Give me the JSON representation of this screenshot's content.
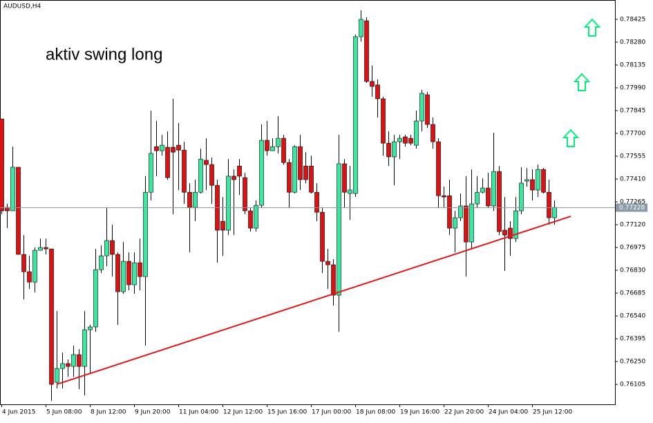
{
  "chart_data": {
    "type": "candlestick",
    "title": "AUDUSD,H4",
    "annotation": "aktiv swing long",
    "annotation_color": "#ee1111",
    "up_color": "#3be8a0",
    "down_color": "#dd1111",
    "categories": [
      "4 Jun 2015",
      null,
      null,
      null,
      null,
      null,
      null,
      null,
      "5 Jun 08:00",
      null,
      null,
      null,
      null,
      null,
      null,
      null,
      "8 Jun 12:00",
      null,
      null,
      null,
      null,
      null,
      null,
      null,
      "9 Jun 20:00",
      null,
      null,
      null,
      null,
      null,
      null,
      null,
      "11 Jun 04:00",
      null,
      null,
      null,
      null,
      null,
      null,
      null,
      "12 Jun 12:00",
      null,
      null,
      null,
      null,
      null,
      null,
      null,
      "15 Jun 16:00",
      null,
      null,
      null,
      null,
      null,
      null,
      null,
      "17 Jun 00:00",
      null,
      null,
      null,
      null,
      null,
      null,
      null,
      "18 Jun 08:00",
      null,
      null,
      null,
      null,
      null,
      null,
      null,
      "19 Jun 16:00",
      null,
      null,
      null,
      null,
      null,
      null,
      null,
      "22 Jun 20:00",
      null,
      null,
      null,
      null,
      null,
      null,
      null,
      "24 Jun 04:00",
      null,
      null,
      null,
      null,
      null,
      null,
      null,
      "25 Jun 12:00",
      null,
      null,
      null,
      null
    ],
    "open": [
      0.77792,
      0.7723,
      0.77208,
      0.77485,
      0.76931,
      0.76821,
      0.76755,
      0.76957,
      0.76975,
      0.76966,
      0.76118,
      0.76206,
      0.76237,
      0.76219,
      0.76294,
      0.76219,
      0.76452,
      0.7647,
      0.76834,
      0.76922,
      0.77019,
      0.76931,
      0.76694,
      0.76887,
      0.76738,
      0.76878,
      0.7679,
      0.77326,
      0.77616,
      0.7759,
      0.77612,
      0.77612,
      0.77625,
      0.77594,
      0.77326,
      0.7723,
      0.77326,
      0.77529,
      0.77502,
      0.7737,
      0.77142,
      0.77085,
      0.77428,
      0.77493,
      0.77419,
      0.77208,
      0.77098,
      0.77243,
      0.77656,
      0.7759,
      0.77616,
      0.77669,
      0.77515,
      0.77326,
      0.77616,
      0.77493,
      0.77493,
      0.77326,
      0.77199,
      0.76887,
      0.76865,
      0.76672,
      0.77507,
      0.77318,
      0.77318,
      0.78315,
      0.78416,
      0.7803,
      0.78008,
      0.7792,
      0.77638,
      0.77551,
      0.77647,
      0.77678,
      0.77669,
      0.77625,
      0.77779,
      0.77946,
      0.77757,
      0.77647,
      0.77304,
      0.77304,
      0.77098,
      0.77164,
      0.77239,
      0.7701,
      0.77252,
      0.77326,
      0.77353,
      0.77239,
      0.77458,
      0.77085,
      0.77098,
      0.77032,
      0.77208,
      0.77397,
      0.77406,
      0.7734,
      0.77471,
      0.77326,
      0.77164
    ],
    "high": [
      0.77792,
      0.77252,
      0.77616,
      0.77485,
      0.77054,
      0.76922,
      0.76975,
      0.77032,
      0.77032,
      0.76966,
      0.76571,
      0.76307,
      0.76263,
      0.76351,
      0.76329,
      0.76571,
      0.76483,
      0.76966,
      0.76988,
      0.7723,
      0.7712,
      0.76944,
      0.7701,
      0.76944,
      0.76944,
      0.77032,
      0.77428,
      0.77845,
      0.77779,
      0.77691,
      0.77713,
      0.7792,
      0.77766,
      0.77647,
      0.77384,
      0.77406,
      0.77603,
      0.77669,
      0.77546,
      0.77406,
      0.77296,
      0.77537,
      0.77471,
      0.77537,
      0.77449,
      0.7723,
      0.77274,
      0.77757,
      0.77779,
      0.77669,
      0.7781,
      0.77691,
      0.77537,
      0.77625,
      0.77691,
      0.77581,
      0.77559,
      0.77384,
      0.7723,
      0.76966,
      0.769,
      0.77691,
      0.77537,
      0.77493,
      0.78328,
      0.78482,
      0.78438,
      0.78131,
      0.78043,
      0.77933,
      0.77713,
      0.77691,
      0.77691,
      0.77691,
      0.77691,
      0.77845,
      0.77977,
      0.77964,
      0.77801,
      0.77669,
      0.77362,
      0.77406,
      0.77208,
      0.77318,
      0.77428,
      0.77471,
      0.77428,
      0.77414,
      0.77449,
      0.77704,
      0.77493,
      0.77296,
      0.77142,
      0.77296,
      0.77485,
      0.7748,
      0.77471,
      0.77502,
      0.7748,
      0.77406,
      0.77274
    ],
    "low": [
      0.77186,
      0.77098,
      0.77208,
      0.76931,
      0.76645,
      0.76711,
      0.76689,
      0.76957,
      0.76931,
      0.75999,
      0.76079,
      0.76079,
      0.76153,
      0.76153,
      0.76074,
      0.76035,
      0.76175,
      0.76439,
      0.76812,
      0.76856,
      0.7679,
      0.76483,
      0.76681,
      0.76703,
      0.76681,
      0.76703,
      0.76351,
      0.77274,
      0.77428,
      0.77559,
      0.77406,
      0.77186,
      0.7734,
      0.77252,
      0.76944,
      0.77142,
      0.77318,
      0.7734,
      0.77252,
      0.76878,
      0.76922,
      0.77054,
      0.77054,
      0.77309,
      0.77186,
      0.77076,
      0.77076,
      0.7723,
      0.77559,
      0.7759,
      0.77573,
      0.77502,
      0.7723,
      0.77318,
      0.7734,
      0.77384,
      0.77318,
      0.77142,
      0.76812,
      0.76711,
      0.76606,
      0.76439,
      0.7723,
      0.77151,
      0.77296,
      0.78284,
      0.78021,
      0.77933,
      0.77801,
      0.77559,
      0.77493,
      0.7737,
      0.77537,
      0.77616,
      0.77625,
      0.77603,
      0.77713,
      0.77735,
      0.77603,
      0.7723,
      0.7723,
      0.77054,
      0.76944,
      0.77142,
      0.7679,
      0.76966,
      0.7723,
      0.77318,
      0.7723,
      0.77208,
      0.77054,
      0.76826,
      0.76922,
      0.7701,
      0.77186,
      0.77362,
      0.77274,
      0.77296,
      0.77318,
      0.7712,
      0.7712
    ],
    "close": [
      0.77208,
      0.77208,
      0.77485,
      0.76931,
      0.76821,
      0.76755,
      0.76957,
      0.76975,
      0.76966,
      0.76105,
      0.76206,
      0.76237,
      0.76219,
      0.76294,
      0.76219,
      0.76452,
      0.7647,
      0.76834,
      0.76922,
      0.77019,
      0.76931,
      0.76694,
      0.76887,
      0.76738,
      0.76878,
      0.7679,
      0.77326,
      0.77573,
      0.7759,
      0.77625,
      0.77419,
      0.77581,
      0.77594,
      0.77326,
      0.7723,
      0.77326,
      0.77537,
      0.77502,
      0.7737,
      0.77085,
      0.77085,
      0.77428,
      0.77406,
      0.77428,
      0.77208,
      0.77098,
      0.77243,
      0.77656,
      0.7759,
      0.77616,
      0.77669,
      0.77515,
      0.77326,
      0.77616,
      0.77406,
      0.77406,
      0.77326,
      0.77199,
      0.76887,
      0.76865,
      0.76672,
      0.77507,
      0.77326,
      0.7734,
      0.78315,
      0.78425,
      0.7803,
      0.77999,
      0.7792,
      0.77638,
      0.77551,
      0.77647,
      0.77669,
      0.77638,
      0.77638,
      0.77779,
      0.77955,
      0.77757,
      0.77647,
      0.77304,
      0.77296,
      0.77098,
      0.77164,
      0.77239,
      0.7701,
      0.77252,
      0.77326,
      0.77353,
      0.77239,
      0.77458,
      0.77076,
      0.77054,
      0.77032,
      0.77208,
      0.77384,
      0.77406,
      0.7734,
      0.77471,
      0.77326,
      0.77164,
      0.7723
    ],
    "ylim": [
      0.75978,
      0.78548
    ],
    "yticks": [
      0.78425,
      {
        "value": 0.7828,
        "label": "0.78280"
      },
      0.78135,
      {
        "value": 0.7799,
        "label": "0.77990"
      },
      0.77845,
      {
        "value": 0.777,
        "label": "0.77700"
      },
      0.77555,
      {
        "value": 0.7741,
        "label": "0.77410"
      },
      0.77265,
      {
        "value": 0.7712,
        "label": "0.77120"
      },
      0.76975,
      {
        "value": 0.7683,
        "label": "0.76830"
      },
      0.76685,
      {
        "value": 0.7654,
        "label": "0.76540"
      },
      0.76395,
      {
        "value": 0.7625,
        "label": "0.76250"
      },
      0.76105
    ],
    "bid": 0.77228,
    "trendline": {
      "from": [
        10,
        0.76105
      ],
      "to": [
        103,
        0.77173
      ],
      "color": "#e01818"
    }
  }
}
